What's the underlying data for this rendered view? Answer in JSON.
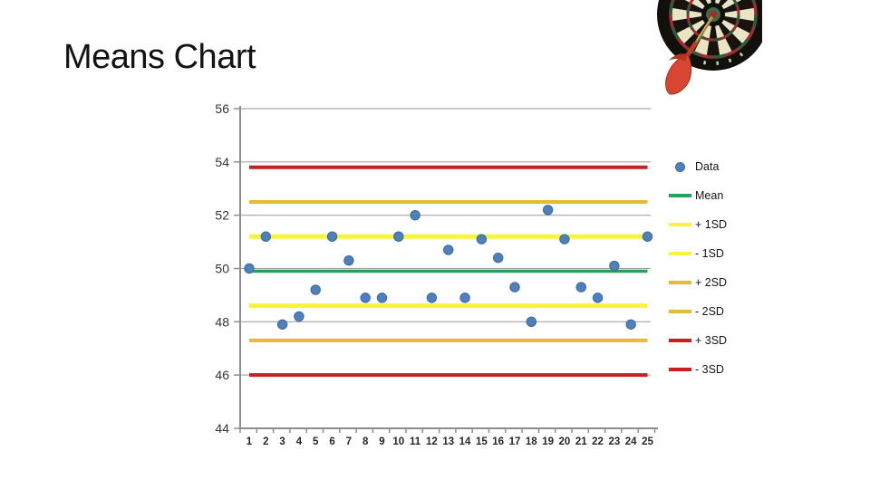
{
  "slide": {
    "title": "Means Chart"
  },
  "chart_data": {
    "type": "scatter",
    "x_categories": [
      "1",
      "2",
      "3",
      "4",
      "5",
      "6",
      "7",
      "8",
      "9",
      "10",
      "11",
      "12",
      "13",
      "14",
      "15",
      "16",
      "17",
      "18",
      "19",
      "20",
      "21",
      "22",
      "23",
      "24",
      "25"
    ],
    "series": [
      {
        "name": "Data",
        "kind": "points",
        "color": "#4E80BC",
        "border": "#3B6A9B",
        "values": [
          50.0,
          51.2,
          47.9,
          48.2,
          49.2,
          51.2,
          50.3,
          48.9,
          48.9,
          51.2,
          52.0,
          48.9,
          50.7,
          48.9,
          51.1,
          50.4,
          49.3,
          48.0,
          52.2,
          51.1,
          49.3,
          48.9,
          50.1,
          47.9,
          51.2
        ]
      },
      {
        "name": "Mean",
        "kind": "hline",
        "value": 49.9,
        "color": "#23A35C",
        "thickness": 3.5
      },
      {
        "name": "+ 1SD",
        "kind": "hline",
        "value": 51.2,
        "color": "#FAF33C",
        "thickness": 5
      },
      {
        "name": "- 1SD",
        "kind": "hline",
        "value": 48.6,
        "color": "#FAF33C",
        "thickness": 5
      },
      {
        "name": "+ 2SD",
        "kind": "hline",
        "value": 52.5,
        "color": "#E5B93A",
        "thickness": 4
      },
      {
        "name": "- 2SD",
        "kind": "hline",
        "value": 47.3,
        "color": "#E5B93A",
        "thickness": 4
      },
      {
        "name": "+ 3SD",
        "kind": "hline",
        "value": 53.8,
        "color": "#C6201F",
        "thickness": 4
      },
      {
        "name": "- 3SD",
        "kind": "hline",
        "value": 46.0,
        "color": "#C6201F",
        "thickness": 4
      }
    ],
    "ylim": [
      44,
      56
    ],
    "yticks": [
      56,
      54,
      52,
      50,
      48,
      46,
      44
    ],
    "grid": "horizontal",
    "grid_color": "#A6A6A6",
    "axis_color": "#8E8E8E",
    "tick_label_color": "#333333",
    "x_label_color": "#262626",
    "legend_position": "right"
  }
}
